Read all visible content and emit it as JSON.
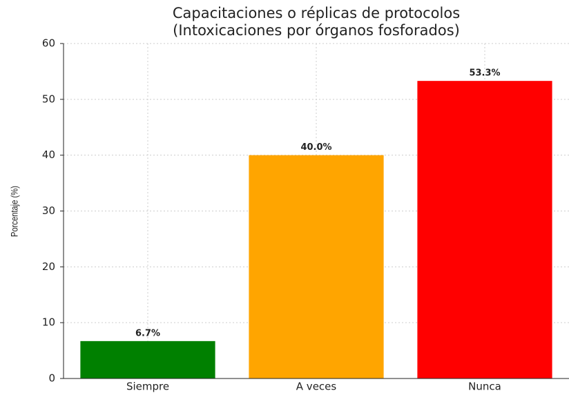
{
  "chart_data": {
    "type": "bar",
    "title": [
      "Capacitaciones o réplicas de protocolos",
      "(Intoxicaciones por órganos fosforados)"
    ],
    "y_label": "Porcentaje (%)",
    "categories": [
      "Siempre",
      "A veces",
      "Nunca"
    ],
    "values": [
      6.7,
      40.0,
      53.3
    ],
    "value_labels": [
      "6.7%",
      "40.0%",
      "53.3%"
    ],
    "colors": [
      "#008000",
      "#ffa500",
      "#ff0000"
    ],
    "ylim": [
      0,
      60
    ],
    "yticks": [
      0,
      10,
      20,
      30,
      40,
      50,
      60
    ],
    "grid": true
  }
}
